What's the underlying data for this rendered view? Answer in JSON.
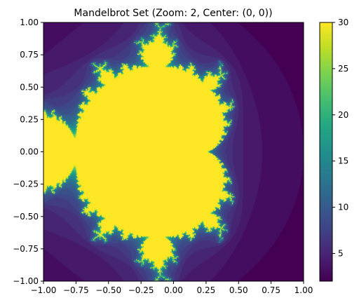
{
  "chart_data": {
    "type": "heatmap",
    "title": "Mandelbrot Set (Zoom: 2, Center: (0, 0))",
    "xlabel": "",
    "ylabel": "",
    "xlim": [
      -1.0,
      1.0
    ],
    "ylim": [
      -1.0,
      1.0
    ],
    "x_ticks": [
      -1.0,
      -0.75,
      -0.5,
      -0.25,
      0.0,
      0.25,
      0.5,
      0.75,
      1.0
    ],
    "x_tick_labels": [
      "−1.00",
      "−0.75",
      "−0.50",
      "−0.25",
      "0.00",
      "0.25",
      "0.50",
      "0.75",
      "1.00"
    ],
    "y_ticks": [
      1.0,
      0.75,
      0.5,
      0.25,
      0.0,
      -0.25,
      -0.5,
      -0.75,
      -1.0
    ],
    "y_tick_labels": [
      "1.00",
      "0.75",
      "0.50",
      "0.25",
      "0.00",
      "−0.25",
      "−0.50",
      "−0.75",
      "−1.00"
    ],
    "max_iterations": 30,
    "colormap": "viridis",
    "colorbar": {
      "range": [
        2,
        30
      ],
      "ticks": [
        5,
        10,
        15,
        20,
        25,
        30
      ],
      "tick_labels": [
        "5",
        "10",
        "15",
        "20",
        "25",
        "30"
      ],
      "placement": "right"
    },
    "grid": false,
    "legend": "none"
  }
}
